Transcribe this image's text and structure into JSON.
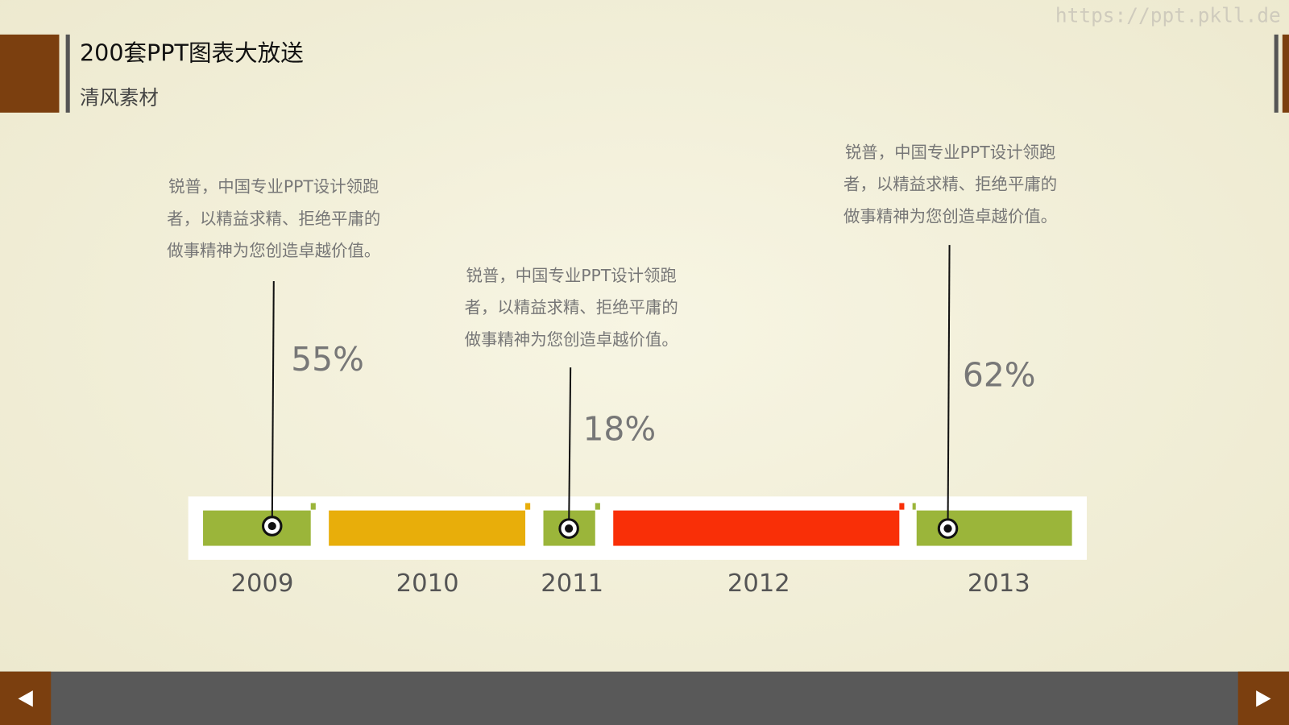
{
  "watermark": "https://ppt.pkll.de",
  "header": {
    "title": "200套PPT图表大放送",
    "subtitle": "清风素材"
  },
  "timeline": {
    "years": [
      "2009",
      "2010",
      "2011",
      "2012",
      "2013"
    ]
  },
  "callouts": [
    {
      "lines": [
        "锐普，中国专业PPT设计领跑",
        "者，以精益求精、拒绝平庸的",
        "做事精神为您创造卓越价值。"
      ],
      "percent": "55%"
    },
    {
      "lines": [
        "锐普，中国专业PPT设计领跑",
        "者，以精益求精、拒绝平庸的",
        "做事精神为您创造卓越价值。"
      ],
      "percent": "18%"
    },
    {
      "lines": [
        "锐普，中国专业PPT设计领跑",
        "者，以精益求精、拒绝平庸的",
        "做事精神为您创造卓越价值。"
      ],
      "percent": "62%"
    }
  ]
}
